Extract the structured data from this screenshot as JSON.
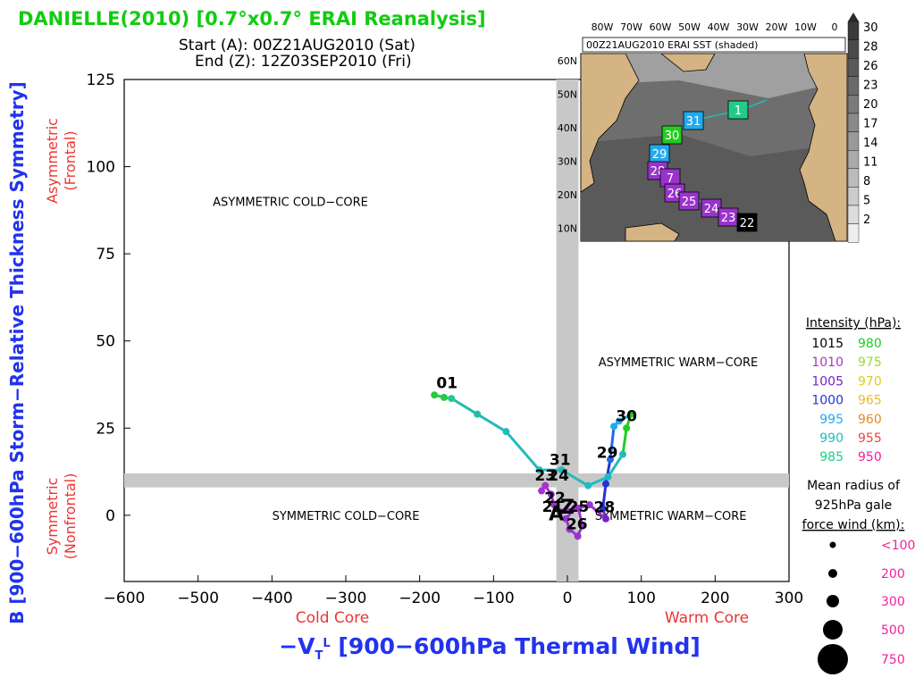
{
  "header": {
    "title": "DANIELLE(2010) [0.7°x0.7° ERAI Reanalysis]",
    "start": "Start (A): 00Z21AUG2010 (Sat)",
    "end": "End (Z): 12Z03SEP2010 (Fri)"
  },
  "colors": {
    "title": "#11cc11",
    "axis_title": "#2233ee",
    "axis_sub": "#ee3333",
    "grey_band": "#c8c8c8",
    "legend_right": "#ee2299"
  },
  "chart_data": {
    "type": "scatter",
    "xlabel": "−V_T^L [900−600hPa Thermal Wind]",
    "ylabel": "B [900−600hPa Storm−Relative Thickness Symmetry]",
    "x_sublabels": {
      "left": "Cold Core",
      "right": "Warm Core"
    },
    "y_sublabels": {
      "top": "Asymmetric (Frontal)",
      "bottom": "Symmetric (Nonfrontal)"
    },
    "xlim": [
      -600,
      300
    ],
    "ylim": [
      -19,
      125
    ],
    "xticks": [
      -600,
      -500,
      -400,
      -300,
      -200,
      -100,
      0,
      100,
      200,
      300
    ],
    "xtick_labels": [
      "−600",
      "−500",
      "−400",
      "−300",
      "−200",
      "−100",
      "0",
      "100",
      "200",
      "300"
    ],
    "yticks": [
      0,
      25,
      50,
      75,
      100,
      125
    ],
    "ytick_labels": [
      "0",
      "25",
      "50",
      "75",
      "100",
      "125"
    ],
    "quadrant_labels": [
      {
        "text": "ASYMMETRIC COLD−CORE",
        "x": -375,
        "y": 90
      },
      {
        "text": "ASYMMETRIC WARM−CORE",
        "x": 150,
        "y": 44
      },
      {
        "text": "SYMMETRIC COLD−CORE",
        "x": -300,
        "y": 0
      },
      {
        "text": "SYMMETRIC WARM−CORE",
        "x": 140,
        "y": 0
      }
    ],
    "track": [
      {
        "x": -180,
        "y": 34.5,
        "color": "#22cc44"
      },
      {
        "x": -167,
        "y": 33.8,
        "color": "#22cc44"
      },
      {
        "x": -157,
        "y": 33.5,
        "color": "#22cc88"
      },
      {
        "x": -122,
        "y": 29,
        "color": "#22bbaa"
      },
      {
        "x": -83,
        "y": 24,
        "color": "#22bbbb"
      },
      {
        "x": -38,
        "y": 13,
        "color": "#22bbbb"
      },
      {
        "x": -8,
        "y": 13,
        "color": "#22bbbb"
      },
      {
        "x": 28,
        "y": 8.5,
        "color": "#22bbbb"
      },
      {
        "x": 55,
        "y": 11,
        "color": "#22bbbb"
      },
      {
        "x": 75,
        "y": 17.5,
        "color": "#22bbbb"
      },
      {
        "x": 80,
        "y": 25,
        "color": "#22cc22"
      },
      {
        "x": 86,
        "y": 29,
        "color": "#22cc22"
      },
      {
        "x": 70,
        "y": 27,
        "color": "#22aaee"
      },
      {
        "x": 63,
        "y": 25.5,
        "color": "#22aaee"
      },
      {
        "x": 58,
        "y": 16,
        "color": "#2266ee"
      },
      {
        "x": 52,
        "y": 9,
        "color": "#2233dd"
      },
      {
        "x": 48,
        "y": 2,
        "color": "#2233dd"
      },
      {
        "x": 52,
        "y": -1,
        "color": "#7722cc"
      },
      {
        "x": 30,
        "y": 3,
        "color": "#9933cc"
      },
      {
        "x": 15,
        "y": 2,
        "color": "#9933cc"
      },
      {
        "x": 20,
        "y": -3,
        "color": "#9933cc"
      },
      {
        "x": 14,
        "y": -6,
        "color": "#9933cc"
      },
      {
        "x": 3,
        "y": -4,
        "color": "#9933cc"
      },
      {
        "x": -2,
        "y": -1,
        "color": "#9933cc"
      },
      {
        "x": 10,
        "y": 2,
        "color": "#9933cc"
      },
      {
        "x": -10,
        "y": 1,
        "color": "#9933cc"
      },
      {
        "x": -18,
        "y": 3,
        "color": "#9933cc"
      },
      {
        "x": -22,
        "y": 6,
        "color": "#9933cc"
      },
      {
        "x": -30,
        "y": 8.5,
        "color": "#aa33cc"
      },
      {
        "x": -35,
        "y": 7,
        "color": "#aa33cc"
      }
    ],
    "day_labels": [
      {
        "text": "01",
        "x": -163,
        "y": 36.5
      },
      {
        "text": "31",
        "x": -10,
        "y": 14.5
      },
      {
        "text": "30",
        "x": 80,
        "y": 27
      },
      {
        "text": "29",
        "x": 54,
        "y": 16.5
      },
      {
        "text": "28",
        "x": 50,
        "y": 0.8
      },
      {
        "text": "26",
        "x": 13,
        "y": -4
      },
      {
        "text": "25",
        "x": 15,
        "y": 1
      },
      {
        "text": "24",
        "x": -12,
        "y": 10
      },
      {
        "text": "23",
        "x": -30,
        "y": 10
      },
      {
        "text": "22",
        "x": -17,
        "y": 3.5
      },
      {
        "text": "21",
        "x": -20,
        "y": 1
      }
    ],
    "end_markers": [
      {
        "text": "A",
        "x": -15,
        "y": -1.5
      },
      {
        "text": "Z",
        "x": 0,
        "y": 0.5
      }
    ]
  },
  "inset": {
    "title": "00Z21AUG2010 ERAI SST (shaded)",
    "lon_labels": [
      "80W",
      "70W",
      "60W",
      "50W",
      "40W",
      "30W",
      "20W",
      "10W",
      "0"
    ],
    "lat_labels": [
      "60N",
      "50N",
      "40N",
      "30N",
      "20N",
      "10N"
    ],
    "colorbar_labels": [
      "30",
      "28",
      "26",
      "23",
      "20",
      "17",
      "14",
      "11",
      "8",
      "5",
      "2"
    ],
    "track_boxes": [
      {
        "label": "1",
        "color": "#22cc88"
      },
      {
        "label": "31",
        "color": "#22aaee"
      },
      {
        "label": "30",
        "color": "#22cc22"
      },
      {
        "label": "29",
        "color": "#22aaee"
      },
      {
        "label": "28",
        "color": "#9933cc"
      },
      {
        "label": "7",
        "color": "#9933cc"
      },
      {
        "label": "26",
        "color": "#9933cc"
      },
      {
        "label": "25",
        "color": "#9933cc"
      },
      {
        "label": "24",
        "color": "#9933cc"
      },
      {
        "label": "23",
        "color": "#9933cc"
      },
      {
        "label": "22",
        "color": "#000000"
      }
    ]
  },
  "legend": {
    "intensity_title": "Intensity (hPa):",
    "intensity": [
      {
        "left": "1015",
        "left_color": "#000000",
        "right": "980",
        "right_color": "#22cc22"
      },
      {
        "left": "1010",
        "left_color": "#aa33cc",
        "right": "975",
        "right_color": "#99dd22"
      },
      {
        "left": "1005",
        "left_color": "#7722cc",
        "right": "970",
        "right_color": "#ddcc22"
      },
      {
        "left": "1000",
        "left_color": "#2233dd",
        "right": "965",
        "right_color": "#eebb22"
      },
      {
        "left": "995",
        "left_color": "#22aaee",
        "right": "960",
        "right_color": "#ee8822"
      },
      {
        "left": "990",
        "left_color": "#22bbbb",
        "right": "955",
        "right_color": "#ee4444"
      },
      {
        "left": "985",
        "left_color": "#22cc88",
        "right": "950",
        "right_color": "#ee2299"
      }
    ],
    "radius_title": [
      "Mean radius of",
      "925hPa gale",
      "force wind (km):"
    ],
    "radius": [
      "<100",
      "200",
      "300",
      "500",
      "750"
    ]
  }
}
